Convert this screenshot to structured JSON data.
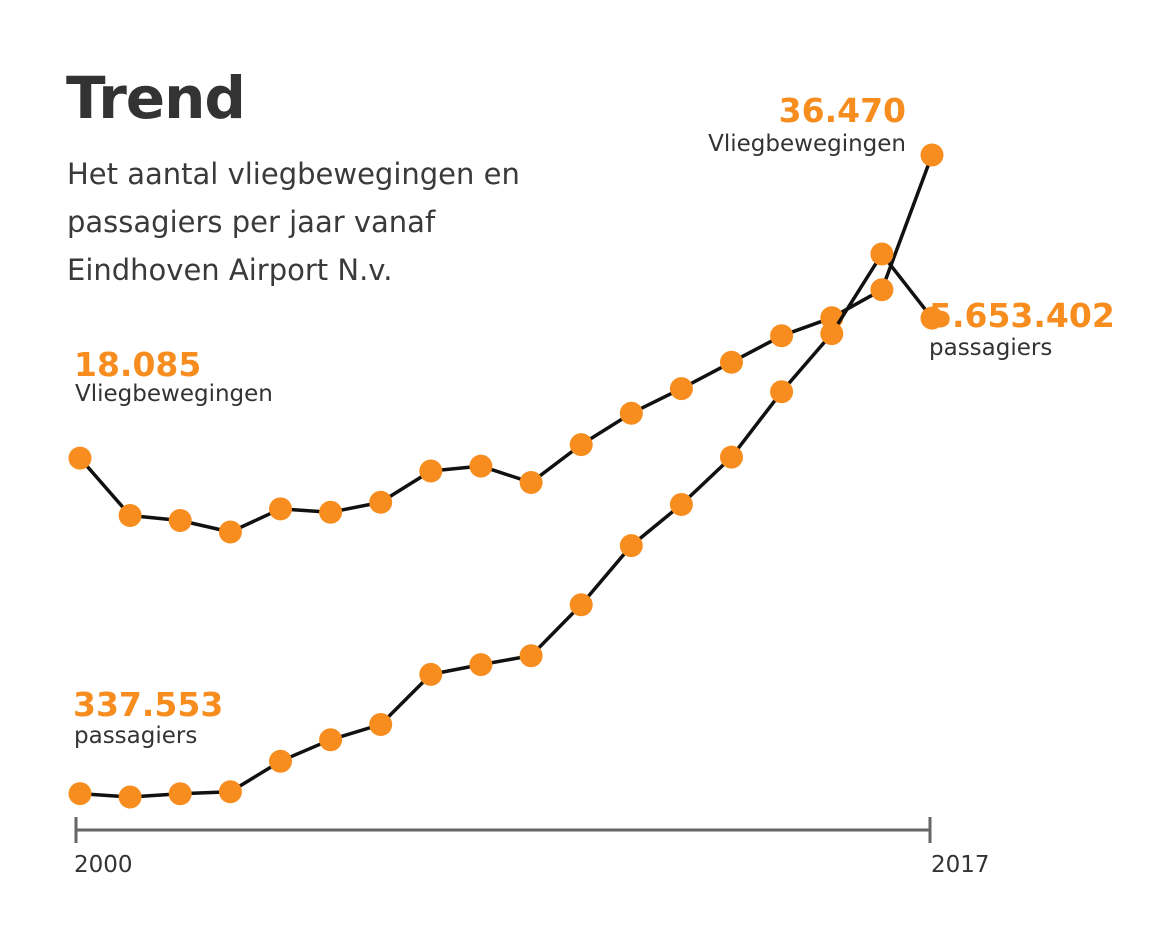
{
  "title": "Trend",
  "subtitle": "Het aantal vliegbewegingen en passagiers per jaar vanaf Eindhoven Airport N.v.",
  "chart_data": {
    "type": "line",
    "x": [
      2000,
      2001,
      2002,
      2003,
      2004,
      2005,
      2006,
      2007,
      2008,
      2009,
      2010,
      2011,
      2012,
      2013,
      2014,
      2015,
      2016,
      2017
    ],
    "xlim": [
      2000,
      2017
    ],
    "x_tick_labels": [
      "2000",
      "2017"
    ],
    "grid": false,
    "series": [
      {
        "name": "Vliegbewegingen",
        "values": [
          18085,
          14600,
          14300,
          13600,
          15000,
          14800,
          15400,
          17300,
          17600,
          16600,
          18900,
          20800,
          22300,
          23900,
          25500,
          26600,
          28300,
          36470
        ],
        "start_label": {
          "value": "18.085",
          "text": "Vliegbewegingen"
        },
        "end_label": {
          "value": "36.470",
          "text": "Vliegbewegingen"
        }
      },
      {
        "name": "passagiers",
        "values": [
          337553,
          300000,
          337000,
          358000,
          700000,
          940000,
          1110000,
          1670000,
          1780000,
          1880000,
          2450000,
          3110000,
          3570000,
          4100000,
          4830000,
          5480000,
          6370000,
          5653402
        ],
        "start_label": {
          "value": "337.553",
          "text": "passagiers"
        },
        "end_label": {
          "value": "5.653.402",
          "text": "passagiers"
        }
      }
    ],
    "colors": {
      "marker": "#f78d1e",
      "line": "#111111",
      "axis": "#666666",
      "value_text": "#f78d1e"
    }
  }
}
